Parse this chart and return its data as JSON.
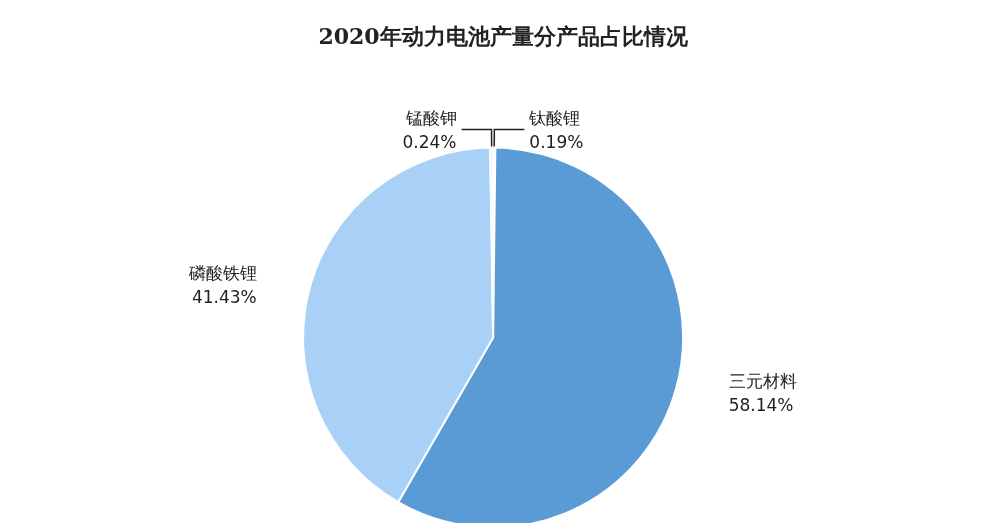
{
  "chart_data": {
    "type": "pie",
    "title": "2020年动力电池产量分产品占比情况",
    "categories": [
      "钛酸锂",
      "三元材料",
      "磷酸铁锂",
      "锰酸钾"
    ],
    "values": [
      0.19,
      58.14,
      41.43,
      0.24
    ],
    "value_labels": [
      "0.19%",
      "58.14%",
      "41.43%",
      "0.24%"
    ],
    "colors": [
      "#3f7fc0",
      "#5b9bd5",
      "#a9d1f7",
      "#d9e7f5"
    ],
    "legend": false
  }
}
